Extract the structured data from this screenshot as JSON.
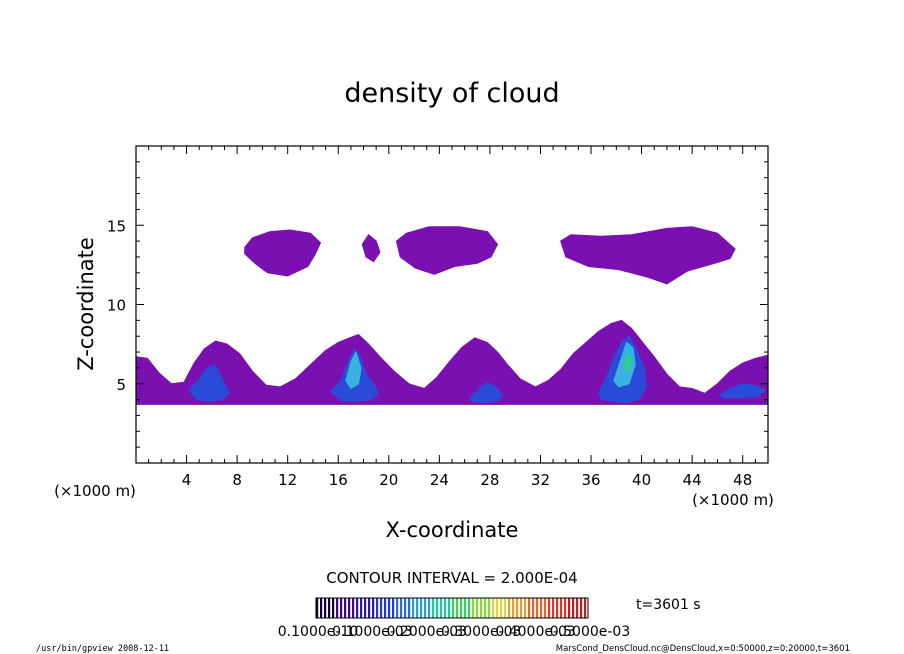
{
  "chart_data": {
    "type": "heatmap",
    "title": "density of cloud",
    "xlabel": "X-coordinate",
    "ylabel": "Z-coordinate",
    "x_unit_left": "(×1000 m)",
    "x_unit_right": "(×1000 m)",
    "xlim": [
      0,
      50
    ],
    "ylim": [
      0,
      20
    ],
    "x_ticks": [
      4,
      8,
      12,
      16,
      20,
      24,
      28,
      32,
      36,
      40,
      44,
      48
    ],
    "x_tick_labels": [
      "4",
      "8",
      "12",
      "16",
      "20",
      "24",
      "28",
      "32",
      "36",
      "40",
      "44",
      "48"
    ],
    "y_ticks": [
      5,
      10,
      15
    ],
    "y_tick_labels": [
      "5",
      "10",
      "15"
    ],
    "contour_interval_text": "CONTOUR INTERVAL = 2.000E-04",
    "time_text": "t=3601 s",
    "colorbar_labels": [
      "0.1000e-10",
      "0.1000e-03",
      "0.2000e-03",
      "0.3000e-03",
      "0.4000e-03",
      "0.5000e-03"
    ],
    "colorbar_colors": [
      "#1a0033",
      "#3a0a7a",
      "#2a1aa8",
      "#1e3ad0",
      "#2a6ae0",
      "#2aa0d8",
      "#1ec8a0",
      "#3ad060",
      "#8ad83a",
      "#d8d83a",
      "#e0a030",
      "#e06a2a",
      "#d83a2a",
      "#c01e1e"
    ],
    "base_color": "#7a10b0",
    "footer_left": "/usr/bin/gpview   2008-12-11",
    "footer_right": "MarsCond_DensCloud.nc@DensCloud,x=0:50000,z=0:20000,t=3601",
    "regions": [
      {
        "label": "upper-cloud-1",
        "color": "#7a10b0",
        "x": [
          8.6,
          9.2,
          10.6,
          12.2,
          13.8,
          14.6,
          14.2,
          13.6,
          12.0,
          10.4,
          9.4,
          8.6,
          8.6
        ],
        "z": [
          13.6,
          14.2,
          14.6,
          14.7,
          14.5,
          13.9,
          13.2,
          12.4,
          11.8,
          12.0,
          12.6,
          13.2,
          13.6
        ]
      },
      {
        "label": "upper-cloud-2",
        "color": "#7a10b0",
        "x": [
          17.9,
          18.4,
          19.0,
          19.3,
          18.8,
          18.2,
          17.9
        ],
        "z": [
          13.8,
          14.4,
          14.0,
          13.3,
          12.7,
          13.0,
          13.8
        ]
      },
      {
        "label": "upper-cloud-3",
        "color": "#7a10b0",
        "x": [
          20.6,
          21.4,
          23.2,
          25.6,
          27.8,
          28.6,
          28.1,
          27.0,
          25.2,
          23.6,
          22.1,
          20.9,
          20.6
        ],
        "z": [
          14.0,
          14.5,
          14.9,
          14.9,
          14.6,
          13.8,
          13.0,
          12.6,
          12.4,
          11.9,
          12.3,
          13.0,
          14.0
        ]
      },
      {
        "label": "upper-cloud-4",
        "color": "#7a10b0",
        "x": [
          33.6,
          34.4,
          36.8,
          39.2,
          42.0,
          44.0,
          46.0,
          47.4,
          47.0,
          45.8,
          43.6,
          42.0,
          40.6,
          38.2,
          35.8,
          34.0,
          33.6
        ],
        "z": [
          14.0,
          14.4,
          14.3,
          14.4,
          14.8,
          14.9,
          14.5,
          13.5,
          12.9,
          12.6,
          12.1,
          11.3,
          11.7,
          12.2,
          12.4,
          13.0,
          14.0
        ]
      },
      {
        "label": "lower-cloud-band",
        "color": "#7a10b0",
        "x": [
          0.0,
          0.9,
          1.8,
          2.8,
          3.8,
          4.6,
          5.4,
          6.3,
          7.2,
          8.2,
          9.2,
          10.3,
          11.4,
          12.6,
          13.8,
          15.0,
          16.0,
          16.9,
          17.6,
          18.4,
          19.3,
          20.4,
          21.6,
          22.8,
          23.8,
          24.8,
          25.8,
          26.8,
          27.8,
          28.6,
          29.4,
          30.4,
          31.6,
          32.6,
          33.6,
          34.6,
          35.6,
          36.6,
          37.6,
          38.4,
          39.2,
          40.0,
          41.0,
          42.0,
          43.0,
          44.0,
          45.0,
          46.0,
          47.0,
          48.0,
          49.0,
          50.0,
          50.0,
          0.0,
          0.0
        ],
        "z": [
          6.7,
          6.6,
          5.7,
          5.0,
          5.1,
          6.3,
          7.2,
          7.7,
          7.5,
          6.9,
          5.8,
          4.9,
          4.8,
          5.3,
          6.2,
          7.1,
          7.6,
          7.9,
          8.1,
          7.5,
          6.7,
          5.8,
          5.0,
          4.7,
          5.4,
          6.4,
          7.3,
          7.9,
          7.6,
          7.0,
          6.2,
          5.3,
          4.8,
          5.2,
          5.9,
          6.9,
          7.6,
          8.3,
          8.8,
          9.0,
          8.5,
          7.7,
          6.7,
          5.6,
          4.8,
          4.7,
          4.4,
          5.0,
          5.8,
          6.3,
          6.6,
          6.8,
          3.7,
          3.7,
          6.7
        ]
      },
      {
        "label": "dense-core-1",
        "color": "#2a4ad8",
        "x": [
          4.2,
          5.0,
          5.6,
          6.2,
          6.6,
          7.0,
          7.4,
          6.8,
          5.8,
          4.8,
          4.2
        ],
        "z": [
          4.6,
          5.3,
          6.0,
          6.2,
          5.7,
          5.0,
          4.4,
          4.0,
          3.9,
          4.0,
          4.6
        ]
      },
      {
        "label": "dense-core-2",
        "color": "#2a4ad8",
        "x": [
          15.4,
          16.2,
          16.8,
          17.3,
          17.8,
          18.2,
          18.8,
          19.2,
          18.6,
          17.6,
          16.4,
          15.4
        ],
        "z": [
          4.5,
          5.2,
          6.4,
          7.2,
          6.6,
          5.6,
          5.0,
          4.4,
          4.0,
          3.9,
          3.9,
          4.5
        ]
      },
      {
        "label": "dense-core-3",
        "color": "#2a4ad8",
        "x": [
          26.4,
          27.2,
          27.8,
          28.4,
          29.0,
          28.6,
          27.6,
          26.6,
          26.4
        ],
        "z": [
          4.1,
          4.7,
          5.1,
          4.8,
          4.3,
          3.9,
          3.8,
          3.9,
          4.1
        ]
      },
      {
        "label": "dense-core-4",
        "color": "#2a4ad8",
        "x": [
          36.6,
          37.2,
          37.8,
          38.4,
          39.0,
          39.6,
          40.2,
          40.4,
          39.8,
          38.8,
          37.6,
          36.8,
          36.6
        ],
        "z": [
          4.4,
          5.4,
          6.6,
          7.6,
          8.0,
          7.2,
          6.0,
          4.8,
          4.0,
          3.8,
          3.9,
          4.0,
          4.4
        ]
      },
      {
        "label": "dense-core-5",
        "color": "#2a4ad8",
        "x": [
          46.2,
          47.0,
          48.0,
          49.0,
          49.8,
          49.2,
          47.8,
          46.4,
          46.2
        ],
        "z": [
          4.3,
          4.7,
          5.0,
          4.9,
          4.6,
          4.2,
          4.1,
          4.1,
          4.3
        ]
      },
      {
        "label": "peak-core-2",
        "color": "#3ab0e0",
        "x": [
          16.6,
          17.0,
          17.4,
          17.8,
          17.6,
          17.0,
          16.6
        ],
        "z": [
          5.2,
          6.4,
          7.0,
          6.0,
          5.0,
          4.7,
          5.2
        ]
      },
      {
        "label": "peak-core-4",
        "color": "#3ab0e0",
        "x": [
          37.8,
          38.3,
          38.8,
          39.3,
          39.5,
          39.0,
          38.2,
          37.8
        ],
        "z": [
          5.2,
          6.4,
          7.6,
          7.3,
          6.2,
          5.0,
          4.8,
          5.2
        ]
      },
      {
        "label": "peak-core-4b",
        "color": "#30d088",
        "x": [
          38.6,
          38.9,
          39.2,
          39.0,
          38.6
        ],
        "z": [
          6.0,
          6.9,
          6.6,
          5.8,
          6.0
        ]
      }
    ]
  }
}
